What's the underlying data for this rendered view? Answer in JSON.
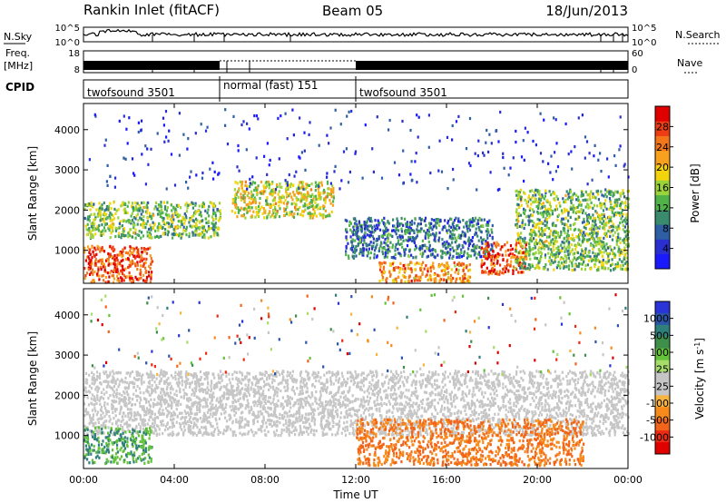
{
  "header": {
    "station": "Rankin Inlet (fitACF)",
    "beam": "Beam 05",
    "date": "18/Jun/2013"
  },
  "strips": {
    "nsky_label": "N.Sky",
    "nsearch_label": "N.Search",
    "counts_ticks": [
      "10^5",
      "10^0"
    ],
    "freq_label": "Freq.",
    "freq_unit": "[MHz]",
    "freq_ticks": [
      "18",
      "8"
    ],
    "nave_label": "Nave",
    "nave_ticks": [
      "60",
      "0"
    ],
    "cpid_label": "CPID",
    "cpid_segments": [
      {
        "label": "twofsound 3501",
        "start_hour": 0,
        "end_hour": 6
      },
      {
        "label": "normal (fast) 151",
        "start_hour": 6,
        "end_hour": 12
      },
      {
        "label": "twofsound 3501",
        "start_hour": 12,
        "end_hour": 24
      }
    ]
  },
  "colors": {
    "power": [
      "#1a1aff",
      "#2a2fcf",
      "#2e5ea3",
      "#3a8a6e",
      "#4fb34a",
      "#9ad33a",
      "#f2d40b",
      "#f7a11f",
      "#f2761a",
      "#ee3c14",
      "#e00000"
    ],
    "velocity": [
      "#2a35d8",
      "#2b56a8",
      "#2f7f7a",
      "#3e8f4a",
      "#63c23a",
      "#a6dc6a",
      "#c6c6c6",
      "#c6c6c6",
      "#f7b43f",
      "#f78a1a",
      "#f2641a",
      "#ee2a14",
      "#e00000"
    ]
  },
  "chart_data": [
    {
      "type": "heatmap",
      "name": "power",
      "xlabel": "",
      "ylabel": "Slant Range [km]",
      "xlim": [
        0,
        24
      ],
      "ylim": [
        180,
        4650
      ],
      "yticks": [
        1000,
        2000,
        3000,
        4000
      ],
      "colorbar": {
        "label": "Power [dB]",
        "ticks": [
          4,
          8,
          12,
          16,
          20,
          24,
          28
        ],
        "range": [
          0,
          32
        ]
      },
      "features": [
        {
          "description": "near-range echoes",
          "t": [
            0,
            3
          ],
          "range_km": [
            200,
            1100
          ],
          "power_db": 28
        },
        {
          "description": "band",
          "t": [
            0,
            6
          ],
          "range_km": [
            1300,
            2200
          ],
          "power_db": 14
        },
        {
          "description": "arc",
          "t": [
            6.5,
            11
          ],
          "range_km": [
            1800,
            2700
          ],
          "power_db": 18
        },
        {
          "description": "band",
          "t": [
            11.5,
            18
          ],
          "range_km": [
            800,
            1800
          ],
          "power_db": 8
        },
        {
          "description": "near-range echoes",
          "t": [
            13,
            17
          ],
          "range_km": [
            200,
            700
          ],
          "power_db": 24
        },
        {
          "description": "enhancement",
          "t": [
            17.5,
            19.5
          ],
          "range_km": [
            400,
            1200
          ],
          "power_db": 28
        },
        {
          "description": "band",
          "t": [
            19,
            24
          ],
          "range_km": [
            500,
            2500
          ],
          "power_db": 14
        }
      ]
    },
    {
      "type": "heatmap",
      "name": "velocity",
      "xlabel": "Time UT",
      "ylabel": "Slant Range [km]",
      "xlim": [
        0,
        24
      ],
      "ylim": [
        180,
        4650
      ],
      "xticks": [
        "00:00",
        "04:00",
        "08:00",
        "12:00",
        "16:00",
        "20:00",
        "00:00"
      ],
      "yticks": [
        1000,
        2000,
        3000,
        4000
      ],
      "colorbar": {
        "label": "Velocity [m s",
        "label_sup": "-1",
        "label_end": "]",
        "ticks": [
          "1000",
          "500",
          "100",
          "25",
          "-25",
          "-100",
          "-500",
          "-1000"
        ]
      },
      "features": [
        {
          "description": "ground scatter",
          "t": [
            0,
            24
          ],
          "range_km": [
            1000,
            2600
          ],
          "velocity_ms": 0
        },
        {
          "description": "positive flow",
          "t": [
            0,
            3
          ],
          "range_km": [
            300,
            1200
          ],
          "velocity_ms": 100
        },
        {
          "description": "negative flow",
          "t": [
            12,
            22
          ],
          "range_km": [
            250,
            1400
          ],
          "velocity_ms": -500
        }
      ]
    }
  ]
}
